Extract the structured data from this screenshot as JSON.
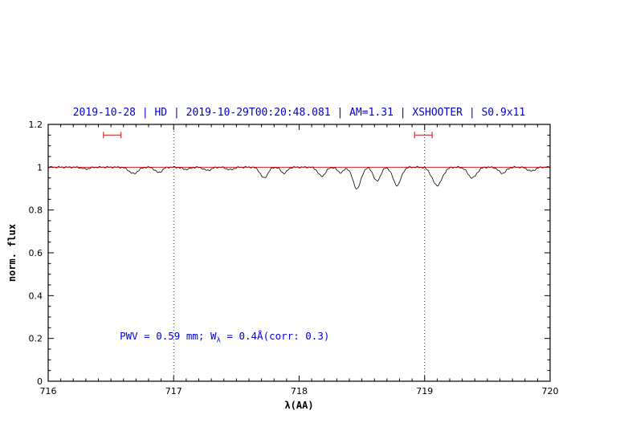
{
  "header": {
    "title": "2019-10-28 | HD | 2019-10-29T00:20:48.081 | AM=1.31 | XSHOOTER | S0.9x11"
  },
  "annotation": {
    "prefix": "PWV = 0.59 mm; W",
    "subscript": "λ",
    "suffix": " = 0.4Å(corr: 0.3)"
  },
  "chart_data": {
    "type": "line",
    "title": "2019-10-28 | HD | 2019-10-29T00:20:48.081 | AM=1.31 | XSHOOTER | S0.9x11",
    "xlabel": "λ(AA)",
    "ylabel": "norm. flux",
    "xlim": [
      716,
      720
    ],
    "ylim": [
      0,
      1.2
    ],
    "x_ticks": [
      716,
      717,
      718,
      719,
      720
    ],
    "x_tick_labels": [
      "716",
      "717",
      "718",
      "719",
      "720"
    ],
    "y_ticks": [
      0,
      0.2,
      0.4,
      0.6,
      0.8,
      1.0,
      1.2
    ],
    "y_tick_labels": [
      "0",
      "0.2",
      "0.4",
      "0.6",
      "0.8",
      "1",
      "1.2"
    ],
    "x_minor_step": 0.1,
    "y_minor_step": 0.05,
    "grid": false,
    "legend": "none",
    "dotted_vlines": [
      717,
      719
    ],
    "reference_line": {
      "y": 1.0,
      "color": "#cc0000"
    },
    "range_markers": [
      {
        "x1": 716.44,
        "x2": 716.58,
        "y": 1.15
      },
      {
        "x1": 718.92,
        "x2": 719.06,
        "y": 1.15
      }
    ],
    "marker_color": "#cc3333",
    "line_color": "#000000",
    "continuum": 1.0,
    "absorption_lines": [
      {
        "center": 716.3,
        "depth": 0.008,
        "sigma": 0.03
      },
      {
        "center": 716.68,
        "depth": 0.03,
        "sigma": 0.035
      },
      {
        "center": 716.88,
        "depth": 0.025,
        "sigma": 0.028
      },
      {
        "center": 717.1,
        "depth": 0.01,
        "sigma": 0.03
      },
      {
        "center": 717.27,
        "depth": 0.015,
        "sigma": 0.03
      },
      {
        "center": 717.45,
        "depth": 0.012,
        "sigma": 0.028
      },
      {
        "center": 717.72,
        "depth": 0.05,
        "sigma": 0.03
      },
      {
        "center": 717.88,
        "depth": 0.028,
        "sigma": 0.025
      },
      {
        "center": 718.18,
        "depth": 0.042,
        "sigma": 0.03
      },
      {
        "center": 718.33,
        "depth": 0.025,
        "sigma": 0.025
      },
      {
        "center": 718.46,
        "depth": 0.1,
        "sigma": 0.032
      },
      {
        "center": 718.62,
        "depth": 0.065,
        "sigma": 0.028
      },
      {
        "center": 718.78,
        "depth": 0.085,
        "sigma": 0.032
      },
      {
        "center": 719.1,
        "depth": 0.085,
        "sigma": 0.04
      },
      {
        "center": 719.38,
        "depth": 0.05,
        "sigma": 0.035
      },
      {
        "center": 719.62,
        "depth": 0.028,
        "sigma": 0.03
      },
      {
        "center": 719.85,
        "depth": 0.018,
        "sigma": 0.03
      }
    ],
    "annotation": {
      "text": "PWV = 0.59 mm; W_λ = 0.4Å(corr: 0.3)",
      "x": 716.57,
      "y": 0.19
    }
  },
  "colors": {
    "title": "#0000cd",
    "annotation": "#0000cd",
    "axis": "#000000",
    "spectrum": "#000000",
    "reference": "#cc0000"
  }
}
